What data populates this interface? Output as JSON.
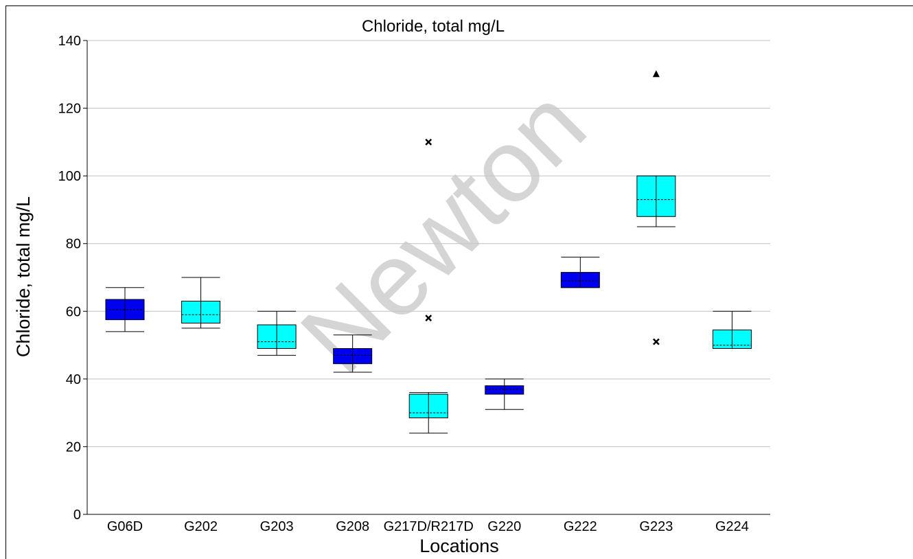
{
  "chart_data": {
    "type": "box",
    "title": "Chloride, total mg/L",
    "xlabel": "Locations",
    "ylabel": "Chloride, total mg/L",
    "ylim": [
      0,
      140
    ],
    "yticks": [
      0,
      20,
      40,
      60,
      80,
      100,
      120,
      140
    ],
    "grid": true,
    "watermark": "Newton",
    "colors": {
      "dark": "#0000f0",
      "light": "#00ffff",
      "grid": "#c0c0c0",
      "watermark": "#c8c8c8"
    },
    "categories": [
      "G06D",
      "G202",
      "G203",
      "G208",
      "G217D/R217D",
      "G220",
      "G222",
      "G223",
      "G224"
    ],
    "boxes": [
      {
        "label": "G06D",
        "color": "dark",
        "min": 54,
        "q1": 57.5,
        "median": 60.5,
        "q3": 63.5,
        "max": 67,
        "outliers": []
      },
      {
        "label": "G202",
        "color": "light",
        "min": 55,
        "q1": 56.5,
        "median": 59,
        "q3": 63,
        "max": 70,
        "outliers": []
      },
      {
        "label": "G203",
        "color": "light",
        "min": 47,
        "q1": 49,
        "median": 51,
        "q3": 56,
        "max": 60,
        "outliers": []
      },
      {
        "label": "G208",
        "color": "dark",
        "min": 42,
        "q1": 44.5,
        "median": 47,
        "q3": 49,
        "max": 53,
        "outliers": []
      },
      {
        "label": "G217D/R217D",
        "color": "light",
        "min": 24,
        "q1": 28.5,
        "median": 30,
        "q3": 35.5,
        "max": 36,
        "outliers": [
          {
            "value": 110,
            "marker": "x"
          },
          {
            "value": 58,
            "marker": "x"
          }
        ]
      },
      {
        "label": "G220",
        "color": "dark",
        "min": 31,
        "q1": 35.5,
        "median": 37,
        "q3": 38,
        "max": 40,
        "outliers": []
      },
      {
        "label": "G222",
        "color": "dark",
        "min": 67,
        "q1": 67,
        "median": 69,
        "q3": 71.5,
        "max": 76,
        "outliers": []
      },
      {
        "label": "G223",
        "color": "light",
        "min": 85,
        "q1": 88,
        "median": 93,
        "q3": 100,
        "max": 100,
        "outliers": [
          {
            "value": 130,
            "marker": "triangle"
          },
          {
            "value": 51,
            "marker": "x"
          }
        ]
      },
      {
        "label": "G224",
        "color": "light",
        "min": 49,
        "q1": 49,
        "median": 50,
        "q3": 54.5,
        "max": 60,
        "outliers": []
      }
    ]
  }
}
